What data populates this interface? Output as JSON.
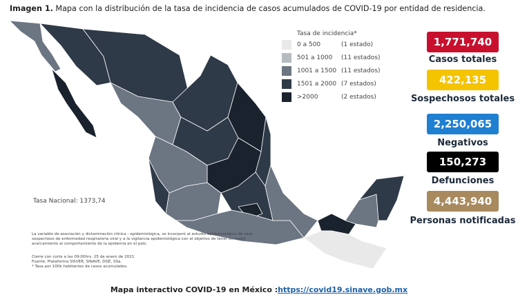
{
  "header": {
    "label": "Imagen 1.",
    "title": "Mapa con la distribución de la tasa de incidencia de casos acumulados de COVID-19 por entidad de residencia."
  },
  "legend": {
    "title": "Tasa de incidencia*",
    "items": [
      {
        "range": "0 a   500",
        "count": "(1 estado)",
        "color": "#e9e9e9"
      },
      {
        "range": "501 a 1000",
        "count": "(11 estados)",
        "color": "#b6bac1"
      },
      {
        "range": "1001 a 1500",
        "count": "(11 estados)",
        "color": "#6c7582"
      },
      {
        "range": "1501 a 2000",
        "count": "(7 estados)",
        "color": "#2f3a48"
      },
      {
        "range": ">2000",
        "count": "(2 estados)",
        "color": "#1a222e"
      }
    ]
  },
  "stats": [
    {
      "value": "1,771,740",
      "label": "Casos totales",
      "color": "#c8102e"
    },
    {
      "value": "422,135",
      "label": "Sospechosos totales",
      "color": "#f5c400"
    },
    {
      "value": "2,250,065",
      "label": "Negativos",
      "color": "#1f7fd1"
    },
    {
      "value": "150,273",
      "label": "Defunciones",
      "color": "#000000"
    },
    {
      "value": "4,443,940",
      "label": "Personas notificadas",
      "color": "#a88a5e"
    }
  ],
  "national_rate": "Tasa Nacional: 1373,74",
  "notes": {
    "paragraph": "La variable de asociación y dictaminación clínica - epidemiológica, se incorporó al estudio epidemiológico de caso sospechoso de enfermedad respiratoria viral y a la vigilancia epidemiológica con el objetivo de tener un mejor acercamiento al comportamiento de la epidemia en el país.",
    "cutoff": "Cierre con corte a las 09:00hrs. 25 de enero de 2021",
    "source": "Fuente: Plataforma SISVER, SINAVE, DGE, SSa.",
    "rate_note": "* Tasa por 100k habitantes de casos acumulados."
  },
  "footer": {
    "text": "Mapa interactivo COVID-19 en México :",
    "link": "https://covid19.sinave.gob.mx"
  }
}
